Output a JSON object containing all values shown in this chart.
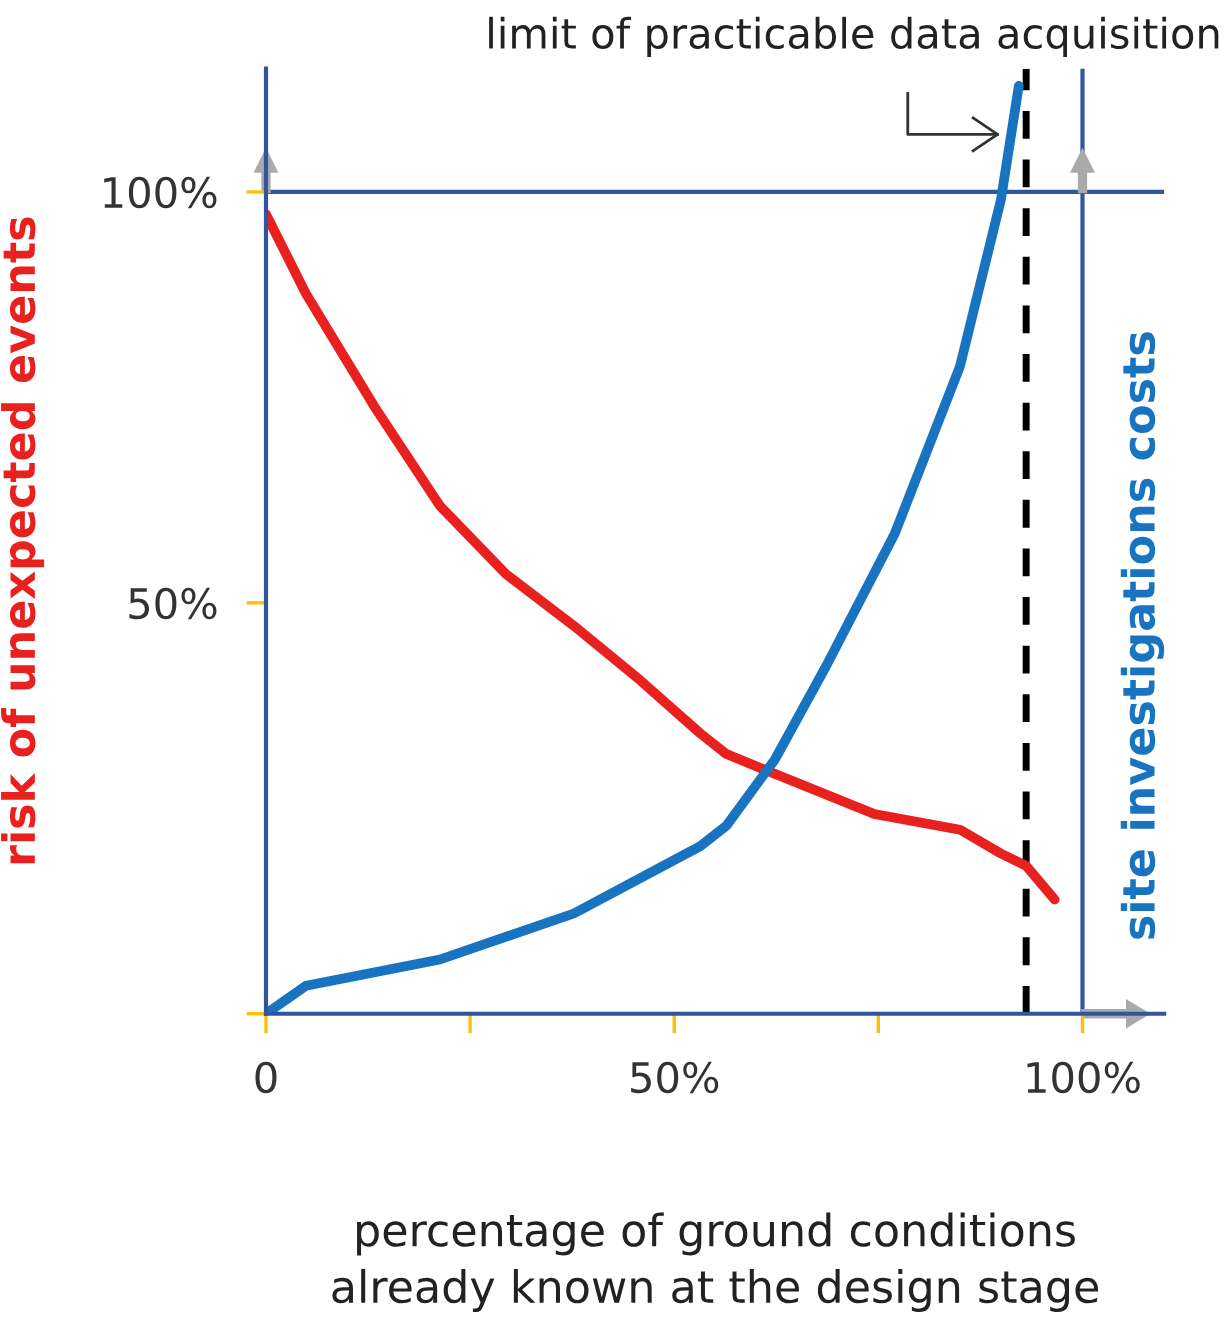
{
  "chart_data": {
    "type": "line",
    "xlabel": "percentage of ground conditions\nalready known at the design stage",
    "ylabel": "risk of unexpected events",
    "y2label": "site investigations costs",
    "xlim": [
      0,
      110
    ],
    "ylim": [
      0,
      115
    ],
    "xticks": [
      0,
      {
        "value": 25,
        "label": null
      },
      {
        "value": 50,
        "label": "50%"
      },
      {
        "value": 75,
        "label": null
      },
      {
        "value": 100,
        "label": "100%"
      }
    ],
    "yticks": [
      {
        "value": 0,
        "label": null
      },
      {
        "value": 50,
        "label": "50%"
      },
      {
        "value": 100,
        "label": "100%"
      }
    ],
    "grid": false,
    "marker": "none",
    "line_style": "solid",
    "series": [
      {
        "color": "#e8211f",
        "x": [
          0,
          4.9,
          13.2,
          21.3,
          29.4,
          37.7,
          45.8,
          53.2,
          56.4,
          62.3,
          74.5,
          85,
          90,
          93.1,
          96.6
        ],
        "values": [
          97.3,
          87.6,
          74,
          61.8,
          53.5,
          47.2,
          40.6,
          34.1,
          31.6,
          29.2,
          24.3,
          22.4,
          19.5,
          18,
          13.9
        ]
      },
      {
        "color": "#1874c0",
        "x": [
          0,
          4.9,
          21.3,
          37.7,
          53.2,
          56.4,
          62.3,
          68.6,
          77,
          85,
          90,
          92.2
        ],
        "values": [
          0,
          3.4,
          6.6,
          12.2,
          20.4,
          22.9,
          30.9,
          42.3,
          58.4,
          78.8,
          99,
          112.9
        ]
      }
    ],
    "ref_lines": [
      {
        "axis": "x",
        "value": 93.1,
        "label": "limit of practicable data acquisition",
        "color": "#000000",
        "line_style": "dashed"
      },
      {
        "axis": "y",
        "value": 100,
        "color": "#2f559e",
        "line_style": "solid"
      },
      {
        "axis": "x",
        "value": 100,
        "color": "#2f559e",
        "line_style": "solid"
      }
    ]
  }
}
